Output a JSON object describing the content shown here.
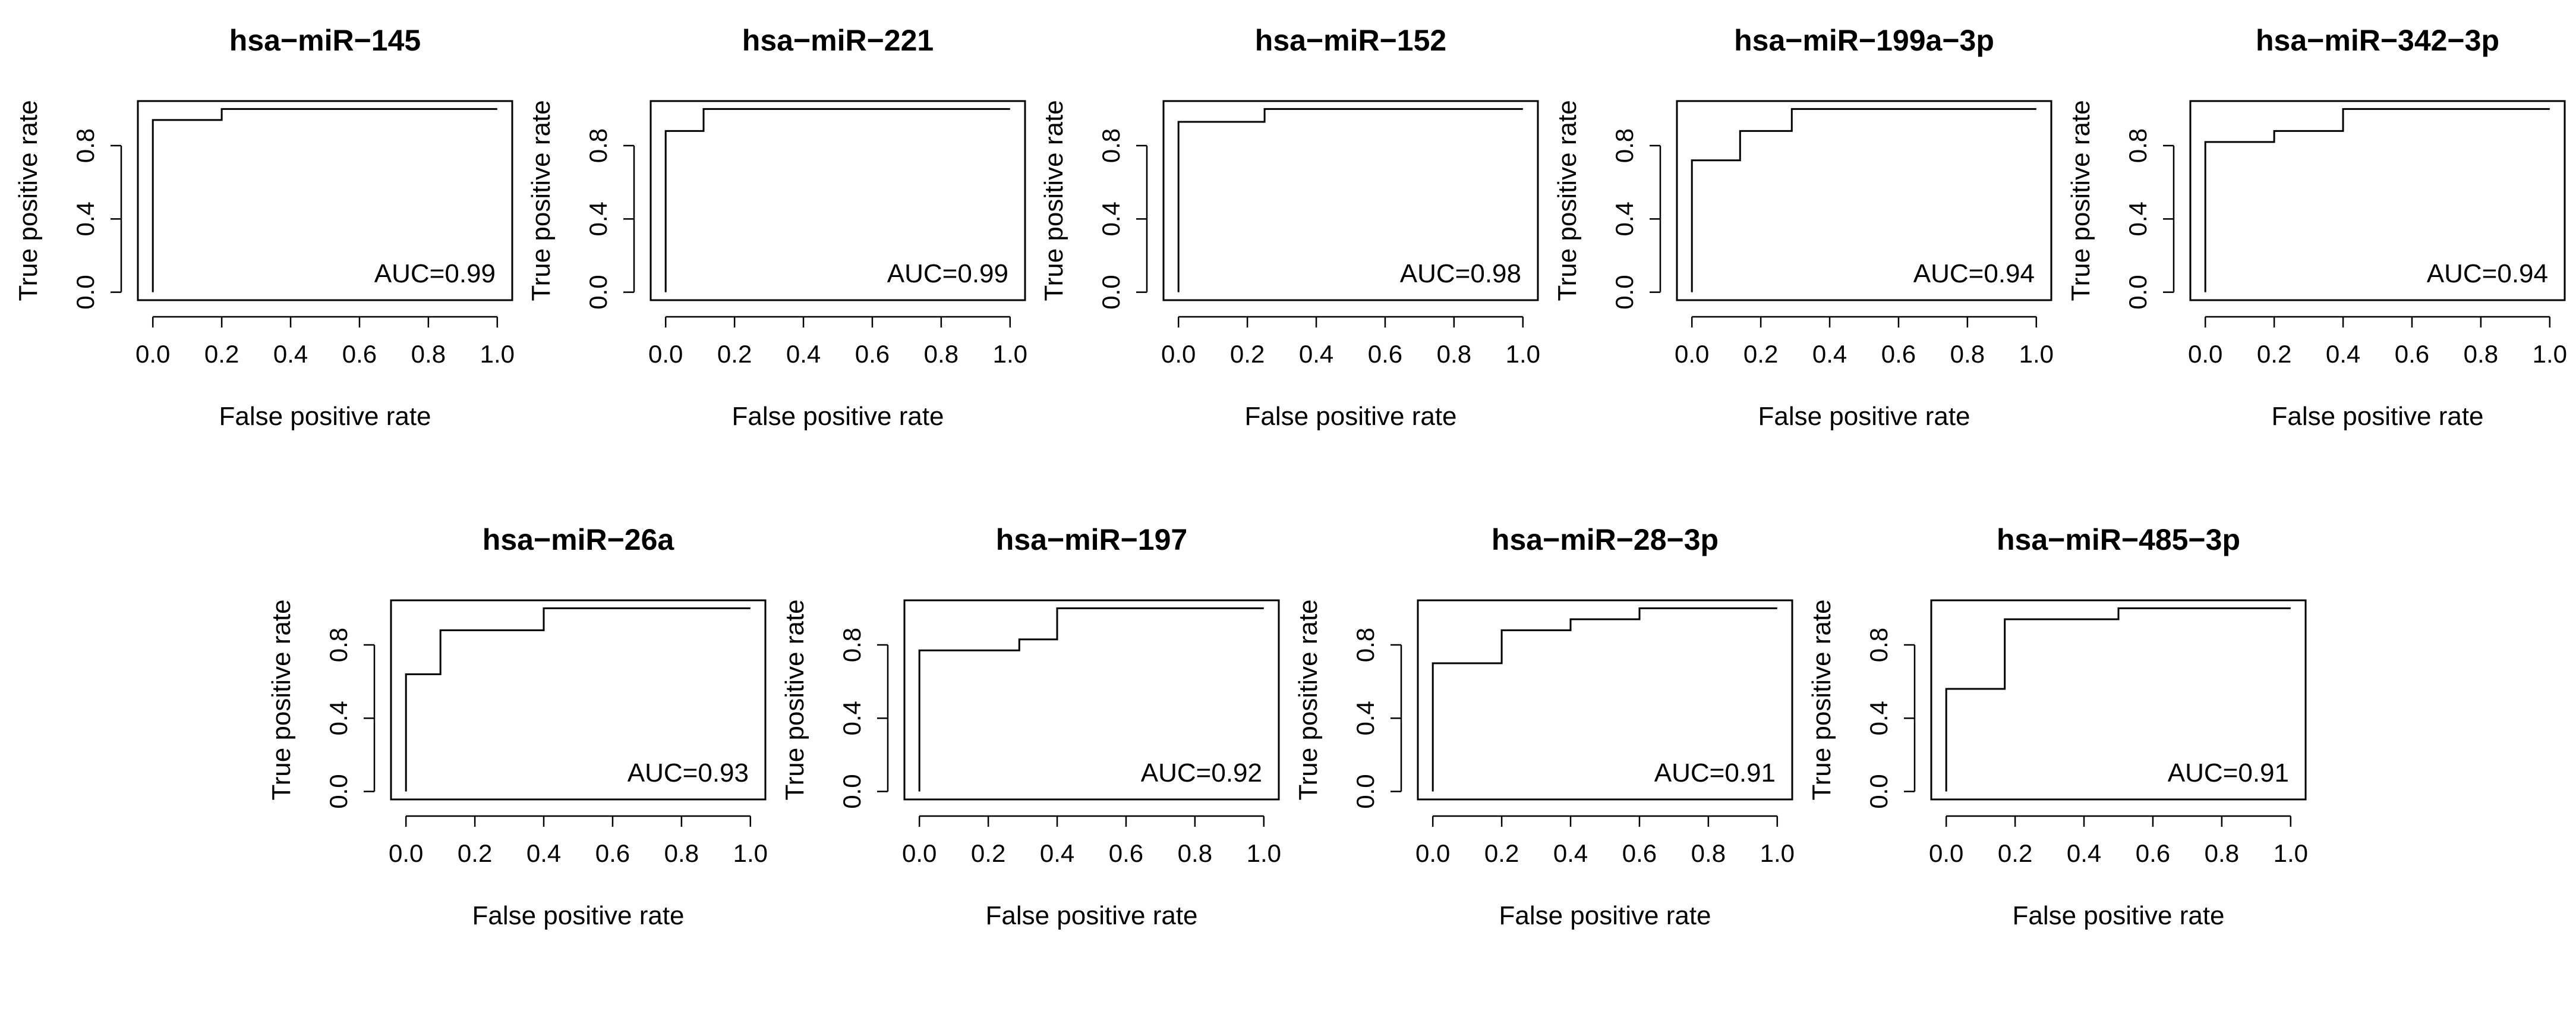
{
  "chart_data": [
    {
      "type": "line",
      "title": "hsa−miR−145",
      "xlabel": "False positive rate",
      "ylabel": "True positive rate",
      "xlim": [
        0,
        1
      ],
      "ylim": [
        0,
        1
      ],
      "xticks": [
        "0.0",
        "0.2",
        "0.4",
        "0.6",
        "0.8",
        "1.0"
      ],
      "yticks": [
        "0.0",
        "0.4",
        "0.8"
      ],
      "annotation": "AUC=0.99",
      "x": [
        0,
        0,
        0.2,
        0.2,
        1
      ],
      "y": [
        0,
        0.94,
        0.94,
        1,
        1
      ]
    },
    {
      "type": "line",
      "title": "hsa−miR−221",
      "xlabel": "False positive rate",
      "ylabel": "True positive rate",
      "xlim": [
        0,
        1
      ],
      "ylim": [
        0,
        1
      ],
      "xticks": [
        "0.0",
        "0.2",
        "0.4",
        "0.6",
        "0.8",
        "1.0"
      ],
      "yticks": [
        "0.0",
        "0.4",
        "0.8"
      ],
      "annotation": "AUC=0.99",
      "x": [
        0,
        0,
        0.11,
        0.11,
        1
      ],
      "y": [
        0,
        0.88,
        0.88,
        1,
        1
      ]
    },
    {
      "type": "line",
      "title": "hsa−miR−152",
      "xlabel": "False positive rate",
      "ylabel": "True positive rate",
      "xlim": [
        0,
        1
      ],
      "ylim": [
        0,
        1
      ],
      "xticks": [
        "0.0",
        "0.2",
        "0.4",
        "0.6",
        "0.8",
        "1.0"
      ],
      "yticks": [
        "0.0",
        "0.4",
        "0.8"
      ],
      "annotation": "AUC=0.98",
      "x": [
        0,
        0,
        0.25,
        0.25,
        1
      ],
      "y": [
        0,
        0.93,
        0.93,
        1,
        1
      ]
    },
    {
      "type": "line",
      "title": "hsa−miR−199a−3p",
      "xlabel": "False positive rate",
      "ylabel": "True positive rate",
      "xlim": [
        0,
        1
      ],
      "ylim": [
        0,
        1
      ],
      "xticks": [
        "0.0",
        "0.2",
        "0.4",
        "0.6",
        "0.8",
        "1.0"
      ],
      "yticks": [
        "0.0",
        "0.4",
        "0.8"
      ],
      "annotation": "AUC=0.94",
      "x": [
        0,
        0,
        0.14,
        0.14,
        0.29,
        0.29,
        1
      ],
      "y": [
        0,
        0.72,
        0.72,
        0.88,
        0.88,
        1,
        1
      ]
    },
    {
      "type": "line",
      "title": "hsa−miR−342−3p",
      "xlabel": "False positive rate",
      "ylabel": "True positive rate",
      "xlim": [
        0,
        1
      ],
      "ylim": [
        0,
        1
      ],
      "xticks": [
        "0.0",
        "0.2",
        "0.4",
        "0.6",
        "0.8",
        "1.0"
      ],
      "yticks": [
        "0.0",
        "0.4",
        "0.8"
      ],
      "annotation": "AUC=0.94",
      "x": [
        0,
        0,
        0.2,
        0.2,
        0.4,
        0.4,
        1
      ],
      "y": [
        0,
        0.82,
        0.82,
        0.88,
        0.88,
        1,
        1
      ]
    },
    {
      "type": "line",
      "title": "hsa−miR−26a",
      "xlabel": "False positive rate",
      "ylabel": "True positive rate",
      "xlim": [
        0,
        1
      ],
      "ylim": [
        0,
        1
      ],
      "xticks": [
        "0.0",
        "0.2",
        "0.4",
        "0.6",
        "0.8",
        "1.0"
      ],
      "yticks": [
        "0.0",
        "0.4",
        "0.8"
      ],
      "annotation": "AUC=0.93",
      "x": [
        0,
        0,
        0.1,
        0.1,
        0.4,
        0.4,
        1
      ],
      "y": [
        0,
        0.64,
        0.64,
        0.88,
        0.88,
        1,
        1
      ]
    },
    {
      "type": "line",
      "title": "hsa−miR−197",
      "xlabel": "False positive rate",
      "ylabel": "True positive rate",
      "xlim": [
        0,
        1
      ],
      "ylim": [
        0,
        1
      ],
      "xticks": [
        "0.0",
        "0.2",
        "0.4",
        "0.6",
        "0.8",
        "1.0"
      ],
      "yticks": [
        "0.0",
        "0.4",
        "0.8"
      ],
      "annotation": "AUC=0.92",
      "x": [
        0,
        0,
        0.29,
        0.29,
        0.4,
        0.4,
        1
      ],
      "y": [
        0,
        0.77,
        0.77,
        0.83,
        0.83,
        1,
        1
      ]
    },
    {
      "type": "line",
      "title": "hsa−miR−28−3p",
      "xlabel": "False positive rate",
      "ylabel": "True positive rate",
      "xlim": [
        0,
        1
      ],
      "ylim": [
        0,
        1
      ],
      "xticks": [
        "0.0",
        "0.2",
        "0.4",
        "0.6",
        "0.8",
        "1.0"
      ],
      "yticks": [
        "0.0",
        "0.4",
        "0.8"
      ],
      "annotation": "AUC=0.91",
      "x": [
        0,
        0,
        0.2,
        0.2,
        0.4,
        0.4,
        0.6,
        0.6,
        1
      ],
      "y": [
        0,
        0.7,
        0.7,
        0.88,
        0.88,
        0.94,
        0.94,
        1,
        1
      ]
    },
    {
      "type": "line",
      "title": "hsa−miR−485−3p",
      "xlabel": "False positive rate",
      "ylabel": "True positive rate",
      "xlim": [
        0,
        1
      ],
      "ylim": [
        0,
        1
      ],
      "xticks": [
        "0.0",
        "0.2",
        "0.4",
        "0.6",
        "0.8",
        "1.0"
      ],
      "yticks": [
        "0.0",
        "0.4",
        "0.8"
      ],
      "annotation": "AUC=0.91",
      "x": [
        0,
        0,
        0.17,
        0.17,
        0.5,
        0.5,
        1
      ],
      "y": [
        0,
        0.56,
        0.56,
        0.94,
        0.94,
        1,
        1
      ]
    }
  ]
}
